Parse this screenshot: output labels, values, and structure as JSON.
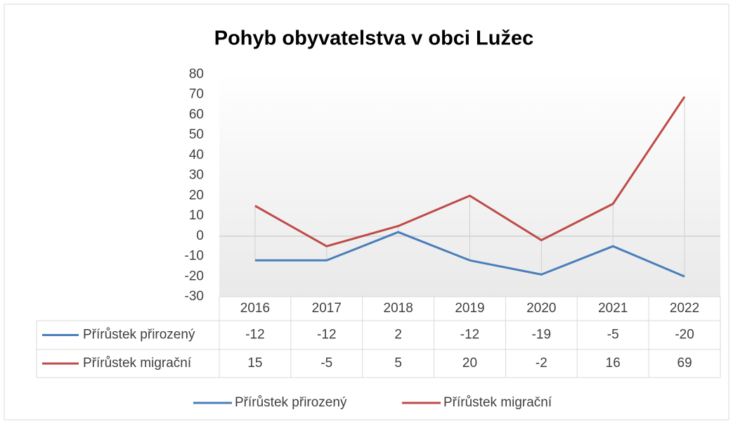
{
  "chart_data": {
    "type": "line",
    "title": "Pohyb obyvatelstva v obci Lužec",
    "categories": [
      "2016",
      "2017",
      "2018",
      "2019",
      "2020",
      "2021",
      "2022"
    ],
    "series": [
      {
        "name": "Přírůstek přirozený",
        "color": "#4a7ebb",
        "values": [
          -12,
          -12,
          2,
          -12,
          -19,
          -5,
          -20
        ]
      },
      {
        "name": "Přírůstek migrační",
        "color": "#be4b48",
        "values": [
          15,
          -5,
          5,
          20,
          -2,
          16,
          69
        ]
      }
    ],
    "ylim": [
      -30,
      80
    ],
    "yticks": [
      -30,
      -20,
      -10,
      0,
      10,
      20,
      30,
      40,
      50,
      60,
      70,
      80
    ],
    "high_low_lines": true,
    "data_table": true,
    "legend": "bottom"
  }
}
